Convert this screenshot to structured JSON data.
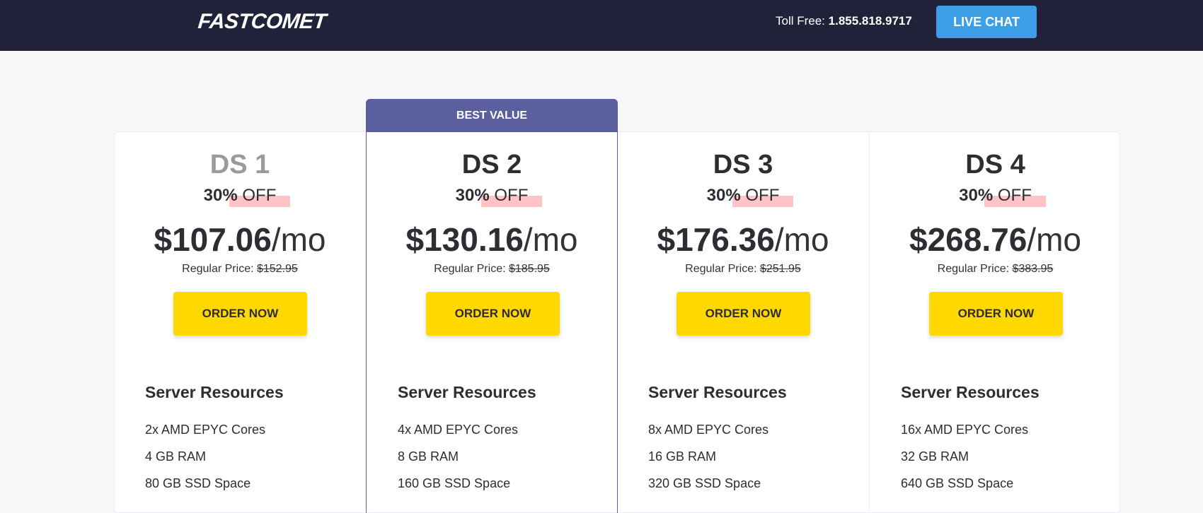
{
  "header": {
    "logo": "FASTCOMET",
    "toll_label": "Toll Free:",
    "toll_number": "1.855.818.9717",
    "live_chat": "LIVE CHAT"
  },
  "badge": "BEST VALUE",
  "plans": [
    {
      "name": "DS 1",
      "discount": "30%",
      "off": "OFF",
      "price": "$107.06",
      "per": "/mo",
      "regular_label": "Regular Price:",
      "regular": "$152.95",
      "order": "ORDER NOW",
      "section": "Server Resources",
      "features": [
        "2x AMD EPYC Cores",
        "4 GB RAM",
        "80 GB SSD Space"
      ]
    },
    {
      "name": "DS 2",
      "discount": "30%",
      "off": "OFF",
      "price": "$130.16",
      "per": "/mo",
      "regular_label": "Regular Price:",
      "regular": "$185.95",
      "order": "ORDER NOW",
      "section": "Server Resources",
      "features": [
        "4x AMD EPYC Cores",
        "8 GB RAM",
        "160 GB SSD Space"
      ]
    },
    {
      "name": "DS 3",
      "discount": "30%",
      "off": "OFF",
      "price": "$176.36",
      "per": "/mo",
      "regular_label": "Regular Price:",
      "regular": "$251.95",
      "order": "ORDER NOW",
      "section": "Server Resources",
      "features": [
        "8x AMD EPYC Cores",
        "16 GB RAM",
        "320 GB SSD Space"
      ]
    },
    {
      "name": "DS 4",
      "discount": "30%",
      "off": "OFF",
      "price": "$268.76",
      "per": "/mo",
      "regular_label": "Regular Price:",
      "regular": "$383.95",
      "order": "ORDER NOW",
      "section": "Server Resources",
      "features": [
        "16x AMD EPYC Cores",
        "32 GB RAM",
        "640 GB SSD Space"
      ]
    }
  ],
  "colors": {
    "header": "#21213a",
    "accent": "#5c5f9d",
    "cta": "#ffd800",
    "chat": "#3d9fe6",
    "highlight": "#ffc4c6"
  }
}
